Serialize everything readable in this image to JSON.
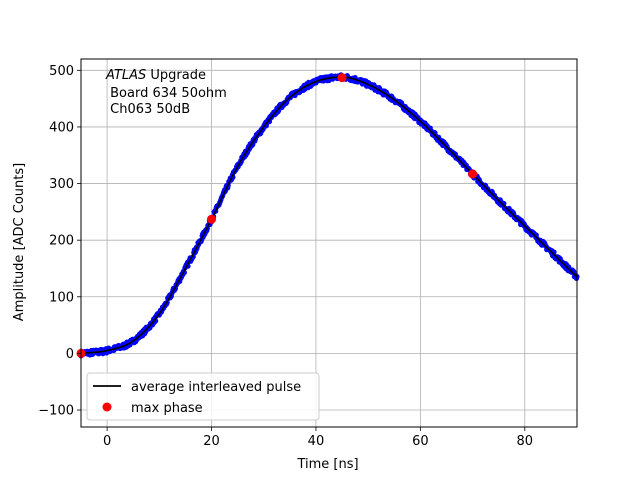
{
  "chart_data": {
    "type": "scatter",
    "title": "",
    "xlabel": "Time [ns]",
    "ylabel": "Amplitude [ADC Counts]",
    "xlim": [
      -5,
      90
    ],
    "ylim": [
      -130,
      520
    ],
    "xticks": [
      0,
      20,
      40,
      60,
      80
    ],
    "yticks": [
      -100,
      0,
      100,
      200,
      300,
      400,
      500
    ],
    "xtick_labels": [
      "0",
      "20",
      "40",
      "60",
      "80"
    ],
    "ytick_labels": [
      "−100",
      "0",
      "100",
      "200",
      "300",
      "400",
      "500"
    ],
    "grid": true,
    "legend_position": "lower-left",
    "annotation": {
      "italic": "ATLAS",
      "line1_rest": " Upgrade",
      "line2": " Board 634 50ohm",
      "line3": " Ch063 50dB"
    },
    "legend": [
      {
        "label": "average interleaved pulse",
        "color": "#000000",
        "marker": "line"
      },
      {
        "label": "max phase",
        "color": "#ff0000",
        "marker": "circle"
      }
    ],
    "average_pulse": {
      "color": "#000000",
      "x": [
        -5,
        0,
        5,
        10,
        15,
        20,
        25,
        30,
        35,
        40,
        45,
        50,
        55,
        60,
        65,
        70,
        75,
        80,
        85,
        90
      ],
      "y": [
        0,
        5,
        22,
        70,
        150,
        237,
        330,
        400,
        452,
        480,
        488,
        475,
        448,
        410,
        365,
        317,
        270,
        225,
        180,
        135
      ]
    },
    "samples": {
      "color": "#0000ff",
      "description_free": true
    },
    "max_phase": {
      "color": "#ff0000",
      "x": [
        -5,
        20,
        45,
        70
      ],
      "y": [
        0,
        237,
        487,
        317
      ]
    }
  }
}
